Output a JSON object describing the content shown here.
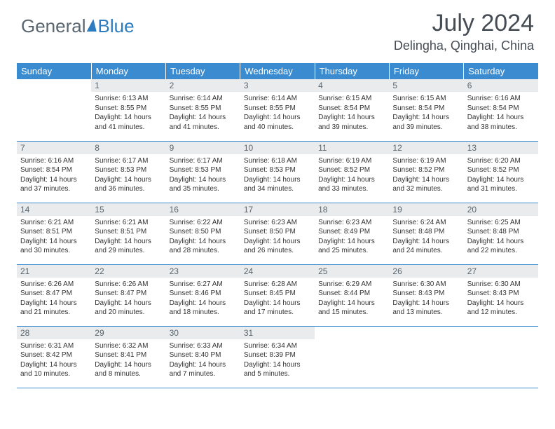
{
  "brand": {
    "part1": "General",
    "part2": "Blue"
  },
  "title": {
    "month_year": "July 2024",
    "location": "Delingha, Qinghai, China"
  },
  "colors": {
    "header_bg": "#3b8bd0",
    "header_text": "#ffffff",
    "daynum_bg": "#e9ebec",
    "daynum_text": "#5a6670",
    "body_text": "#333333",
    "rule": "#3b8bd0",
    "brand_gray": "#5a6670",
    "brand_blue": "#2e7cc0",
    "page_bg": "#ffffff"
  },
  "fonts": {
    "title_size": 34,
    "location_size": 18,
    "th_size": 13,
    "daynum_size": 12,
    "cell_size": 10
  },
  "weekdays": [
    "Sunday",
    "Monday",
    "Tuesday",
    "Wednesday",
    "Thursday",
    "Friday",
    "Saturday"
  ],
  "weeks": [
    [
      {
        "n": "",
        "sr": "",
        "ss": "",
        "dl": ""
      },
      {
        "n": "1",
        "sr": "Sunrise: 6:13 AM",
        "ss": "Sunset: 8:55 PM",
        "dl": "Daylight: 14 hours and 41 minutes."
      },
      {
        "n": "2",
        "sr": "Sunrise: 6:14 AM",
        "ss": "Sunset: 8:55 PM",
        "dl": "Daylight: 14 hours and 41 minutes."
      },
      {
        "n": "3",
        "sr": "Sunrise: 6:14 AM",
        "ss": "Sunset: 8:55 PM",
        "dl": "Daylight: 14 hours and 40 minutes."
      },
      {
        "n": "4",
        "sr": "Sunrise: 6:15 AM",
        "ss": "Sunset: 8:54 PM",
        "dl": "Daylight: 14 hours and 39 minutes."
      },
      {
        "n": "5",
        "sr": "Sunrise: 6:15 AM",
        "ss": "Sunset: 8:54 PM",
        "dl": "Daylight: 14 hours and 39 minutes."
      },
      {
        "n": "6",
        "sr": "Sunrise: 6:16 AM",
        "ss": "Sunset: 8:54 PM",
        "dl": "Daylight: 14 hours and 38 minutes."
      }
    ],
    [
      {
        "n": "7",
        "sr": "Sunrise: 6:16 AM",
        "ss": "Sunset: 8:54 PM",
        "dl": "Daylight: 14 hours and 37 minutes."
      },
      {
        "n": "8",
        "sr": "Sunrise: 6:17 AM",
        "ss": "Sunset: 8:53 PM",
        "dl": "Daylight: 14 hours and 36 minutes."
      },
      {
        "n": "9",
        "sr": "Sunrise: 6:17 AM",
        "ss": "Sunset: 8:53 PM",
        "dl": "Daylight: 14 hours and 35 minutes."
      },
      {
        "n": "10",
        "sr": "Sunrise: 6:18 AM",
        "ss": "Sunset: 8:53 PM",
        "dl": "Daylight: 14 hours and 34 minutes."
      },
      {
        "n": "11",
        "sr": "Sunrise: 6:19 AM",
        "ss": "Sunset: 8:52 PM",
        "dl": "Daylight: 14 hours and 33 minutes."
      },
      {
        "n": "12",
        "sr": "Sunrise: 6:19 AM",
        "ss": "Sunset: 8:52 PM",
        "dl": "Daylight: 14 hours and 32 minutes."
      },
      {
        "n": "13",
        "sr": "Sunrise: 6:20 AM",
        "ss": "Sunset: 8:52 PM",
        "dl": "Daylight: 14 hours and 31 minutes."
      }
    ],
    [
      {
        "n": "14",
        "sr": "Sunrise: 6:21 AM",
        "ss": "Sunset: 8:51 PM",
        "dl": "Daylight: 14 hours and 30 minutes."
      },
      {
        "n": "15",
        "sr": "Sunrise: 6:21 AM",
        "ss": "Sunset: 8:51 PM",
        "dl": "Daylight: 14 hours and 29 minutes."
      },
      {
        "n": "16",
        "sr": "Sunrise: 6:22 AM",
        "ss": "Sunset: 8:50 PM",
        "dl": "Daylight: 14 hours and 28 minutes."
      },
      {
        "n": "17",
        "sr": "Sunrise: 6:23 AM",
        "ss": "Sunset: 8:50 PM",
        "dl": "Daylight: 14 hours and 26 minutes."
      },
      {
        "n": "18",
        "sr": "Sunrise: 6:23 AM",
        "ss": "Sunset: 8:49 PM",
        "dl": "Daylight: 14 hours and 25 minutes."
      },
      {
        "n": "19",
        "sr": "Sunrise: 6:24 AM",
        "ss": "Sunset: 8:48 PM",
        "dl": "Daylight: 14 hours and 24 minutes."
      },
      {
        "n": "20",
        "sr": "Sunrise: 6:25 AM",
        "ss": "Sunset: 8:48 PM",
        "dl": "Daylight: 14 hours and 22 minutes."
      }
    ],
    [
      {
        "n": "21",
        "sr": "Sunrise: 6:26 AM",
        "ss": "Sunset: 8:47 PM",
        "dl": "Daylight: 14 hours and 21 minutes."
      },
      {
        "n": "22",
        "sr": "Sunrise: 6:26 AM",
        "ss": "Sunset: 8:47 PM",
        "dl": "Daylight: 14 hours and 20 minutes."
      },
      {
        "n": "23",
        "sr": "Sunrise: 6:27 AM",
        "ss": "Sunset: 8:46 PM",
        "dl": "Daylight: 14 hours and 18 minutes."
      },
      {
        "n": "24",
        "sr": "Sunrise: 6:28 AM",
        "ss": "Sunset: 8:45 PM",
        "dl": "Daylight: 14 hours and 17 minutes."
      },
      {
        "n": "25",
        "sr": "Sunrise: 6:29 AM",
        "ss": "Sunset: 8:44 PM",
        "dl": "Daylight: 14 hours and 15 minutes."
      },
      {
        "n": "26",
        "sr": "Sunrise: 6:30 AM",
        "ss": "Sunset: 8:43 PM",
        "dl": "Daylight: 14 hours and 13 minutes."
      },
      {
        "n": "27",
        "sr": "Sunrise: 6:30 AM",
        "ss": "Sunset: 8:43 PM",
        "dl": "Daylight: 14 hours and 12 minutes."
      }
    ],
    [
      {
        "n": "28",
        "sr": "Sunrise: 6:31 AM",
        "ss": "Sunset: 8:42 PM",
        "dl": "Daylight: 14 hours and 10 minutes."
      },
      {
        "n": "29",
        "sr": "Sunrise: 6:32 AM",
        "ss": "Sunset: 8:41 PM",
        "dl": "Daylight: 14 hours and 8 minutes."
      },
      {
        "n": "30",
        "sr": "Sunrise: 6:33 AM",
        "ss": "Sunset: 8:40 PM",
        "dl": "Daylight: 14 hours and 7 minutes."
      },
      {
        "n": "31",
        "sr": "Sunrise: 6:34 AM",
        "ss": "Sunset: 8:39 PM",
        "dl": "Daylight: 14 hours and 5 minutes."
      },
      {
        "n": "",
        "sr": "",
        "ss": "",
        "dl": ""
      },
      {
        "n": "",
        "sr": "",
        "ss": "",
        "dl": ""
      },
      {
        "n": "",
        "sr": "",
        "ss": "",
        "dl": ""
      }
    ]
  ]
}
